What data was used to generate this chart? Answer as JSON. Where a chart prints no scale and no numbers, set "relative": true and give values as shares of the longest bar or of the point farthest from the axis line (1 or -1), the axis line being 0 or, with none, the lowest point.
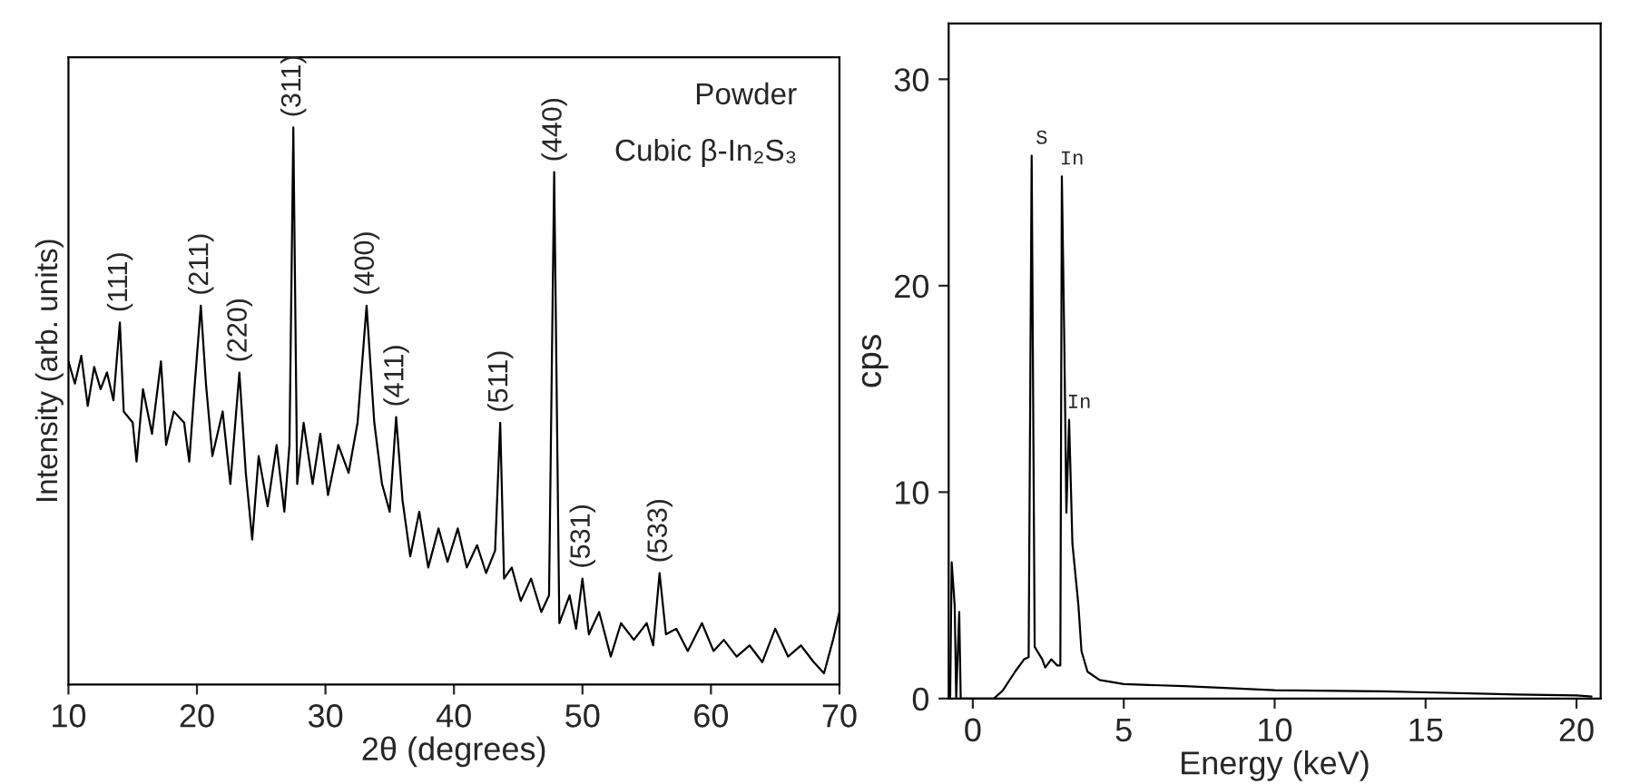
{
  "chart_data": [
    {
      "type": "line",
      "relative": true,
      "xlabel": "2θ (degrees)",
      "ylabel": "Intensity (arb. units)",
      "xlim": [
        10,
        70
      ],
      "xticks": [
        10,
        20,
        30,
        40,
        50,
        60,
        70
      ],
      "tick_labels": "x",
      "grid": false,
      "legend": false,
      "x": [
        10.0,
        10.5,
        11,
        11.5,
        12,
        12.5,
        13,
        13.5,
        14.0,
        14.3,
        15,
        15.3,
        15.8,
        16.5,
        17.2,
        17.6,
        18.2,
        19,
        19.4,
        19.8,
        20.3,
        20.7,
        21.2,
        22,
        22.6,
        23.3,
        23.8,
        24.3,
        24.8,
        25.5,
        26.2,
        26.8,
        27.2,
        27.5,
        27.8,
        28.3,
        29,
        29.6,
        30.2,
        31,
        31.8,
        32.5,
        33.2,
        33.8,
        34.4,
        35,
        35.5,
        36,
        36.6,
        37.3,
        38,
        38.8,
        39.5,
        40.3,
        41,
        41.8,
        42.5,
        43.2,
        43.6,
        43.9,
        44.5,
        45.2,
        46,
        46.8,
        47.4,
        47.8,
        48.2,
        49,
        49.5,
        50.0,
        50.5,
        51.3,
        52.2,
        53,
        54,
        55,
        55.5,
        56.0,
        56.5,
        57.3,
        58.2,
        59.3,
        60.2,
        61,
        62,
        63,
        64,
        65,
        66,
        67,
        68,
        68.8,
        69.5,
        70
      ],
      "series": [
        {
          "color": "#000000",
          "values": [
            0.58,
            0.54,
            0.59,
            0.5,
            0.57,
            0.53,
            0.56,
            0.51,
            0.65,
            0.49,
            0.47,
            0.4,
            0.53,
            0.45,
            0.58,
            0.43,
            0.49,
            0.47,
            0.4,
            0.53,
            0.68,
            0.54,
            0.41,
            0.49,
            0.36,
            0.56,
            0.38,
            0.26,
            0.41,
            0.32,
            0.43,
            0.31,
            0.43,
            1.0,
            0.36,
            0.47,
            0.36,
            0.45,
            0.34,
            0.43,
            0.38,
            0.47,
            0.68,
            0.47,
            0.36,
            0.31,
            0.48,
            0.33,
            0.23,
            0.31,
            0.21,
            0.28,
            0.22,
            0.28,
            0.21,
            0.25,
            0.2,
            0.24,
            0.47,
            0.19,
            0.21,
            0.15,
            0.19,
            0.13,
            0.16,
            0.92,
            0.11,
            0.16,
            0.1,
            0.19,
            0.09,
            0.13,
            0.05,
            0.11,
            0.08,
            0.11,
            0.07,
            0.2,
            0.09,
            0.1,
            0.06,
            0.11,
            0.06,
            0.08,
            0.05,
            0.07,
            0.04,
            0.1,
            0.05,
            0.07,
            0.04,
            0.02,
            0.08,
            0.13
          ]
        }
      ],
      "annotations": [
        "Powder",
        "Cubic β-In₂S₃",
        {
          "text": "(111)",
          "x": 14.0,
          "y": 0.65
        },
        {
          "text": "(211)",
          "x": 20.3,
          "y": 0.68
        },
        {
          "text": "(220)",
          "x": 23.3,
          "y": 0.56
        },
        {
          "text": "(311)",
          "x": 27.5,
          "y": 1.0
        },
        {
          "text": "(400)",
          "x": 33.2,
          "y": 0.68
        },
        {
          "text": "(411)",
          "x": 35.5,
          "y": 0.48
        },
        {
          "text": "(511)",
          "x": 43.6,
          "y": 0.47
        },
        {
          "text": "(440)",
          "x": 47.8,
          "y": 0.92
        },
        {
          "text": "(531)",
          "x": 50.0,
          "y": 0.19
        },
        {
          "text": "(533)",
          "x": 56.0,
          "y": 0.2
        }
      ]
    },
    {
      "type": "line",
      "xlabel": "Energy (keV)",
      "ylabel": "cps",
      "xlim": [
        -0.8,
        20.8
      ],
      "xticks": [
        0,
        5,
        10,
        15,
        20
      ],
      "ylim": [
        0,
        32.7
      ],
      "yticks": [
        0,
        10,
        20,
        30
      ],
      "grid": false,
      "legend": false,
      "x": [
        -0.75,
        -0.7,
        -0.6,
        -0.55,
        -0.45,
        -0.4,
        0.7,
        1.0,
        1.4,
        1.7,
        1.85,
        1.95,
        2.05,
        2.3,
        2.4,
        2.6,
        2.8,
        2.9,
        2.95,
        3.03,
        3.1,
        3.19,
        3.3,
        3.5,
        3.6,
        3.8,
        4.2,
        5,
        7,
        10,
        13.5,
        15,
        18,
        20,
        20.5
      ],
      "series": [
        {
          "color": "#000000",
          "values": [
            0,
            6.6,
            4.5,
            0,
            4.2,
            0,
            0,
            0.4,
            1.3,
            1.9,
            2.0,
            26.3,
            2.5,
            1.9,
            1.5,
            1.9,
            1.6,
            1.6,
            25.3,
            17.4,
            9.0,
            13.5,
            7.5,
            4.5,
            2.3,
            1.3,
            0.9,
            0.7,
            0.6,
            0.4,
            0.35,
            0.3,
            0.2,
            0.15,
            0.1
          ]
        }
      ],
      "annotations": [
        {
          "text": "S",
          "x": 1.95,
          "y": 26.3
        },
        {
          "text": "In",
          "x": 2.95,
          "y": 25.3
        },
        {
          "text": "In",
          "x": 3.19,
          "y": 13.5
        }
      ]
    }
  ]
}
